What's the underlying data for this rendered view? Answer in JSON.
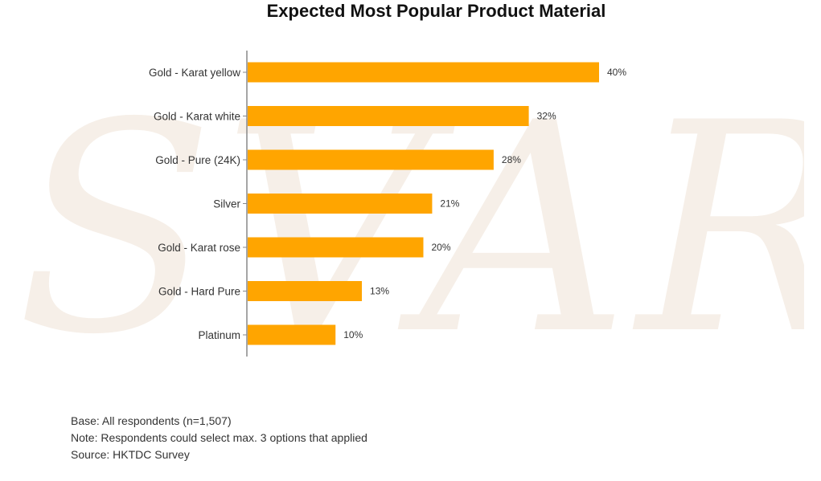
{
  "chart_data": {
    "type": "bar",
    "orientation": "horizontal",
    "title": "Expected Most Popular Product Material",
    "categories": [
      "Gold - Karat yellow",
      "Gold - Karat white",
      "Gold - Pure (24K)",
      "Silver",
      "Gold - Karat rose",
      "Gold - Hard Pure",
      "Platinum"
    ],
    "values": [
      40,
      32,
      28,
      21,
      20,
      13,
      10
    ],
    "data_labels": [
      "40%",
      "32%",
      "28%",
      "21%",
      "20%",
      "13%",
      "10%"
    ],
    "unit": "%",
    "xlim": [
      0,
      40
    ],
    "xlabel": "",
    "ylabel": "",
    "grid": false,
    "bar_color": "#FFA500"
  },
  "watermark": {
    "text": "SVAR"
  },
  "footnotes": {
    "base": "Base: All respondents (n=1,507)",
    "note": "Note: Respondents could select max. 3 options that applied",
    "source": "Source: HKTDC Survey"
  }
}
